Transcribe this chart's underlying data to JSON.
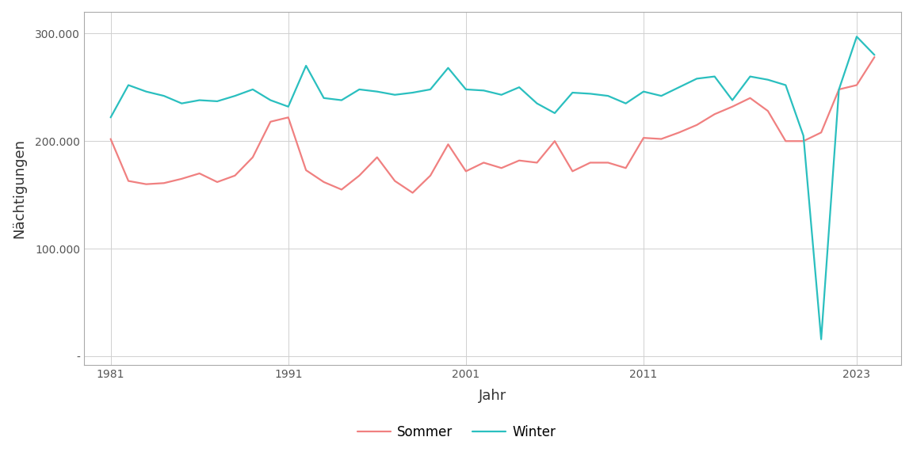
{
  "years": [
    1981,
    1982,
    1983,
    1984,
    1985,
    1986,
    1987,
    1988,
    1989,
    1990,
    1991,
    1992,
    1993,
    1994,
    1995,
    1996,
    1997,
    1998,
    1999,
    2000,
    2001,
    2002,
    2003,
    2004,
    2005,
    2006,
    2007,
    2008,
    2009,
    2010,
    2011,
    2012,
    2013,
    2014,
    2015,
    2016,
    2017,
    2018,
    2019,
    2020,
    2021,
    2022,
    2023,
    2024
  ],
  "sommer": [
    202000,
    163000,
    160000,
    161000,
    165000,
    170000,
    162000,
    168000,
    185000,
    218000,
    222000,
    173000,
    162000,
    155000,
    168000,
    185000,
    163000,
    152000,
    168000,
    197000,
    172000,
    180000,
    175000,
    182000,
    180000,
    200000,
    172000,
    180000,
    180000,
    175000,
    203000,
    202000,
    208000,
    215000,
    225000,
    232000,
    240000,
    228000,
    200000,
    200000,
    208000,
    248000,
    252000,
    278000
  ],
  "winter": [
    222000,
    252000,
    246000,
    242000,
    235000,
    238000,
    237000,
    242000,
    248000,
    238000,
    232000,
    270000,
    240000,
    238000,
    248000,
    246000,
    243000,
    245000,
    248000,
    268000,
    248000,
    247000,
    243000,
    250000,
    235000,
    226000,
    245000,
    244000,
    242000,
    235000,
    246000,
    242000,
    250000,
    258000,
    260000,
    238000,
    260000,
    257000,
    252000,
    205000,
    16000,
    248000,
    297000,
    280000
  ],
  "sommer_color": "#F08080",
  "winter_color": "#2ABFBF",
  "background_color": "#ffffff",
  "grid_color": "#d0d0d0",
  "panel_border_color": "#aaaaaa",
  "ylabel": "Nächtigungen",
  "xlabel": "Jahr",
  "yticks": [
    0,
    100000,
    200000,
    300000
  ],
  "ytick_labels": [
    "-",
    "100.000",
    "200.000",
    "300.000"
  ],
  "xticks": [
    1981,
    1991,
    2001,
    2011,
    2023
  ],
  "ylim": [
    -8000,
    320000
  ],
  "xlim": [
    1979.5,
    2025.5
  ],
  "legend_labels": [
    "Sommer",
    "Winter"
  ],
  "line_width": 1.6,
  "tick_fontsize": 10,
  "label_fontsize": 13
}
